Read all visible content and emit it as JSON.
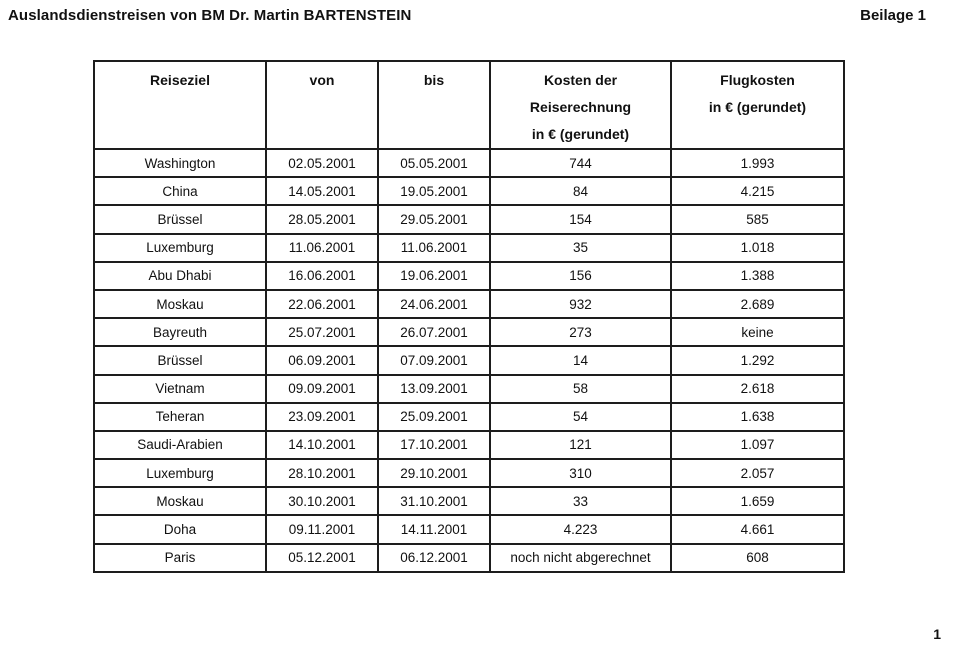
{
  "header": {
    "title": "Auslandsdienstreisen von BM Dr. Martin BARTENSTEIN",
    "attachment": "Beilage 1"
  },
  "colors": {
    "ink": "#111111",
    "paper": "#ffffff"
  },
  "table": {
    "columns": [
      {
        "lines": [
          "Reiseziel"
        ]
      },
      {
        "lines": [
          "von"
        ]
      },
      {
        "lines": [
          "bis"
        ]
      },
      {
        "lines": [
          "Kosten der",
          "Reiserechnung",
          "in € (gerundet)"
        ]
      },
      {
        "lines": [
          "Flugkosten",
          "in € (gerundet)"
        ]
      }
    ],
    "rows": [
      [
        "Washington",
        "02.05.2001",
        "05.05.2001",
        "744",
        "1.993"
      ],
      [
        "China",
        "14.05.2001",
        "19.05.2001",
        "84",
        "4.215"
      ],
      [
        "Brüssel",
        "28.05.2001",
        "29.05.2001",
        "154",
        "585"
      ],
      [
        "Luxemburg",
        "11.06.2001",
        "11.06.2001",
        "35",
        "1.018"
      ],
      [
        "Abu Dhabi",
        "16.06.2001",
        "19.06.2001",
        "156",
        "1.388"
      ],
      [
        "Moskau",
        "22.06.2001",
        "24.06.2001",
        "932",
        "2.689"
      ],
      [
        "Bayreuth",
        "25.07.2001",
        "26.07.2001",
        "273",
        "keine"
      ],
      [
        "Brüssel",
        "06.09.2001",
        "07.09.2001",
        "14",
        "1.292"
      ],
      [
        "Vietnam",
        "09.09.2001",
        "13.09.2001",
        "58",
        "2.618"
      ],
      [
        "Teheran",
        "23.09.2001",
        "25.09.2001",
        "54",
        "1.638"
      ],
      [
        "Saudi-Arabien",
        "14.10.2001",
        "17.10.2001",
        "121",
        "1.097"
      ],
      [
        "Luxemburg",
        "28.10.2001",
        "29.10.2001",
        "310",
        "2.057"
      ],
      [
        "Moskau",
        "30.10.2001",
        "31.10.2001",
        "33",
        "1.659"
      ],
      [
        "Doha",
        "09.11.2001",
        "14.11.2001",
        "4.223",
        "4.661"
      ],
      [
        "Paris",
        "05.12.2001",
        "06.12.2001",
        "noch nicht abgerechnet",
        "608"
      ]
    ]
  },
  "footer": {
    "page_number": "1"
  }
}
